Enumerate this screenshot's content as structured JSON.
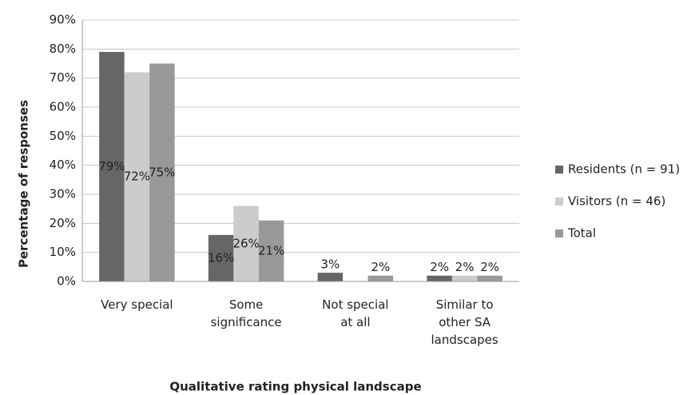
{
  "chart_data": {
    "type": "bar",
    "x_label": "Qualitative rating physical landscape",
    "y_label": "Percentage of responses",
    "categories": [
      "Very special",
      "Some significance",
      "Not special at all",
      "Similar to other SA landscapes"
    ],
    "series": [
      {
        "name": "Residents (n = 91)",
        "color": "#666666",
        "values": [
          79,
          16,
          3,
          2
        ],
        "value_labels": [
          "79%",
          "16%",
          "3%",
          "2%"
        ]
      },
      {
        "name": "Visitors (n = 46)",
        "color": "#cccccc",
        "values": [
          72,
          26,
          null,
          2
        ],
        "value_labels": [
          "72%",
          "26%",
          null,
          "2%"
        ]
      },
      {
        "name": "Total",
        "color": "#999999",
        "values": [
          75,
          21,
          2,
          2
        ],
        "value_labels": [
          "75%",
          "21%",
          "2%",
          "2%"
        ]
      }
    ],
    "ylim": [
      0,
      90
    ],
    "yticks": [
      {
        "value": 0,
        "label": "0%"
      },
      {
        "value": 10,
        "label": "10%"
      },
      {
        "value": 20,
        "label": "20%"
      },
      {
        "value": 30,
        "label": "30%"
      },
      {
        "value": 40,
        "label": "40%"
      },
      {
        "value": 50,
        "label": "50%"
      },
      {
        "value": 60,
        "label": "60%"
      },
      {
        "value": 70,
        "label": "70%"
      },
      {
        "value": 80,
        "label": "80%"
      },
      {
        "value": 90,
        "label": "90%"
      }
    ],
    "grid": true,
    "legend": "right"
  }
}
